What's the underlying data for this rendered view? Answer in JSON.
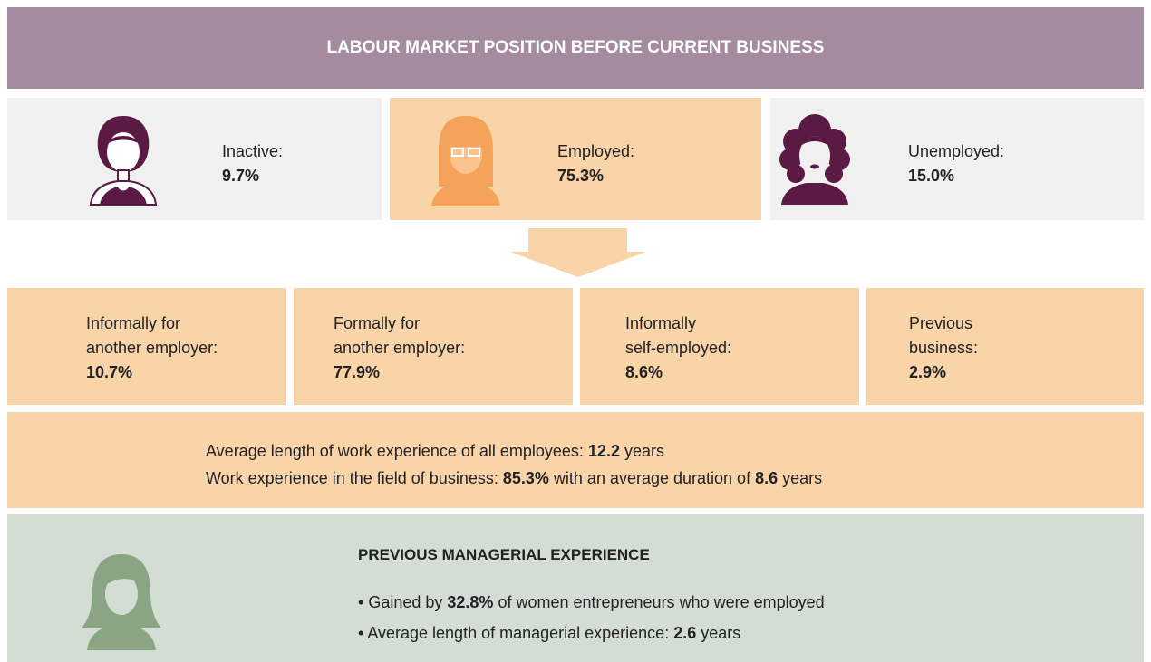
{
  "header": {
    "title": "LABOUR MARKET POSITION BEFORE CURRENT BUSINESS"
  },
  "groups": [
    {
      "label": "Inactive:",
      "value": "9.7%"
    },
    {
      "label": "Employed:",
      "value": "75.3%"
    },
    {
      "label": "Unemployed:",
      "value": "15.0%"
    }
  ],
  "employment_types": [
    {
      "label_lines": [
        "Informally for",
        "another employer:"
      ],
      "value": "10.7%"
    },
    {
      "label_lines": [
        "Formally for",
        "another employer:"
      ],
      "value": "77.9%"
    },
    {
      "label_lines": [
        "Informally",
        "self-employed:"
      ],
      "value": "8.6%"
    },
    {
      "label_lines": [
        "Previous",
        "business:"
      ],
      "value": "2.9%"
    }
  ],
  "experience": {
    "lines": [
      [
        {
          "text": "Average length of work experience of all employees:"
        },
        {
          "text": "12.2",
          "bold": true
        },
        {
          "text": "years"
        }
      ],
      [
        {
          "text": "Work experience in the field of business:"
        },
        {
          "text": "85.3%",
          "bold": true
        },
        {
          "text": "with an average duration of"
        },
        {
          "text": "8.6",
          "bold": true
        },
        {
          "text": "years"
        }
      ]
    ]
  },
  "managerial": {
    "title": "PREVIOUS MANAGERIAL EXPERIENCE",
    "bullets": [
      [
        {
          "text": "Gained by"
        },
        {
          "text": "32.8%",
          "bold": true
        },
        {
          "text": "of women entrepreneurs who were employed"
        }
      ],
      [
        {
          "text": "Average length of managerial experience:"
        },
        {
          "text": "2.6",
          "bold": true
        },
        {
          "text": "years"
        }
      ]
    ]
  }
}
